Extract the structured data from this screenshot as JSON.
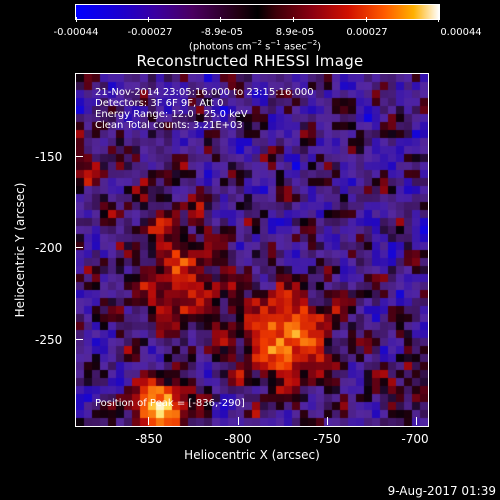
{
  "colorbar": {
    "labels": [
      "-0.00044",
      "-0.00027",
      "-8.9e-05",
      "8.9e-05",
      "0.00027",
      "0.00044"
    ],
    "units": "(photons cm^-2 s^-1 asec^-2)"
  },
  "title": "Reconstructed RHESSI Image",
  "annotations": {
    "time_range": "21-Nov-2014 23:05:16.000 to 23:15:16.000",
    "detectors": "Detectors: 3F 6F 9F, Att 0",
    "energy": "Energy Range: 12.0 - 25.0 keV",
    "clean": "Clean     Total counts: 3.21E+03",
    "peak": "Position of Peak = [-836,-290]"
  },
  "xaxis": {
    "title": "Heliocentric X (arcsec)",
    "ticks": [
      "-850",
      "-800",
      "-750",
      "-700"
    ]
  },
  "yaxis": {
    "title": "Heliocentric Y (arcsec)",
    "ticks": [
      "-150",
      "-200",
      "-250"
    ]
  },
  "timestamp": "9-Aug-2017 01:39",
  "colors": {
    "background": "#000000",
    "foreground": "#ffffff",
    "purple_bg": "#5a2da0",
    "hot_core": "#ff8c1a"
  }
}
